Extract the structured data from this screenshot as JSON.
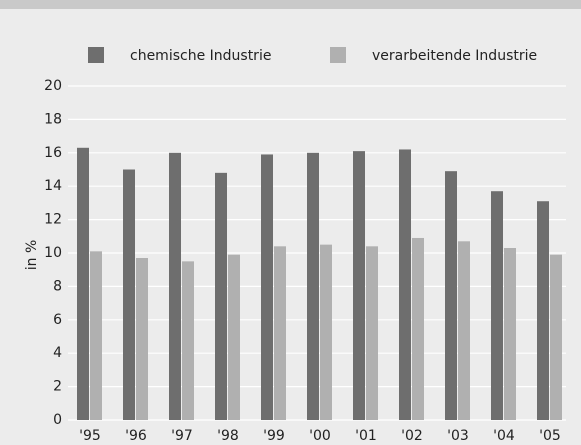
{
  "chart_data": {
    "type": "bar",
    "categories": [
      "'95",
      "'96",
      "'97",
      "'98",
      "'99",
      "'00",
      "'01",
      "'02",
      "'03",
      "'04",
      "'05"
    ],
    "series": [
      {
        "name": "chemische Industrie",
        "color": "#6e6e6e",
        "values": [
          16.3,
          15.0,
          16.0,
          14.8,
          15.9,
          16.0,
          16.1,
          16.2,
          14.9,
          13.7,
          13.1
        ]
      },
      {
        "name": "verarbeitende Industrie",
        "color": "#b0b0b0",
        "values": [
          10.1,
          9.7,
          9.5,
          9.9,
          10.4,
          10.5,
          10.4,
          10.9,
          10.7,
          10.3,
          9.9
        ]
      }
    ],
    "ylabel": "in %",
    "ylim": [
      0,
      20
    ],
    "yticks": [
      0,
      2,
      4,
      6,
      8,
      10,
      12,
      14,
      16,
      18,
      20
    ],
    "grid": true,
    "legend": "top"
  }
}
